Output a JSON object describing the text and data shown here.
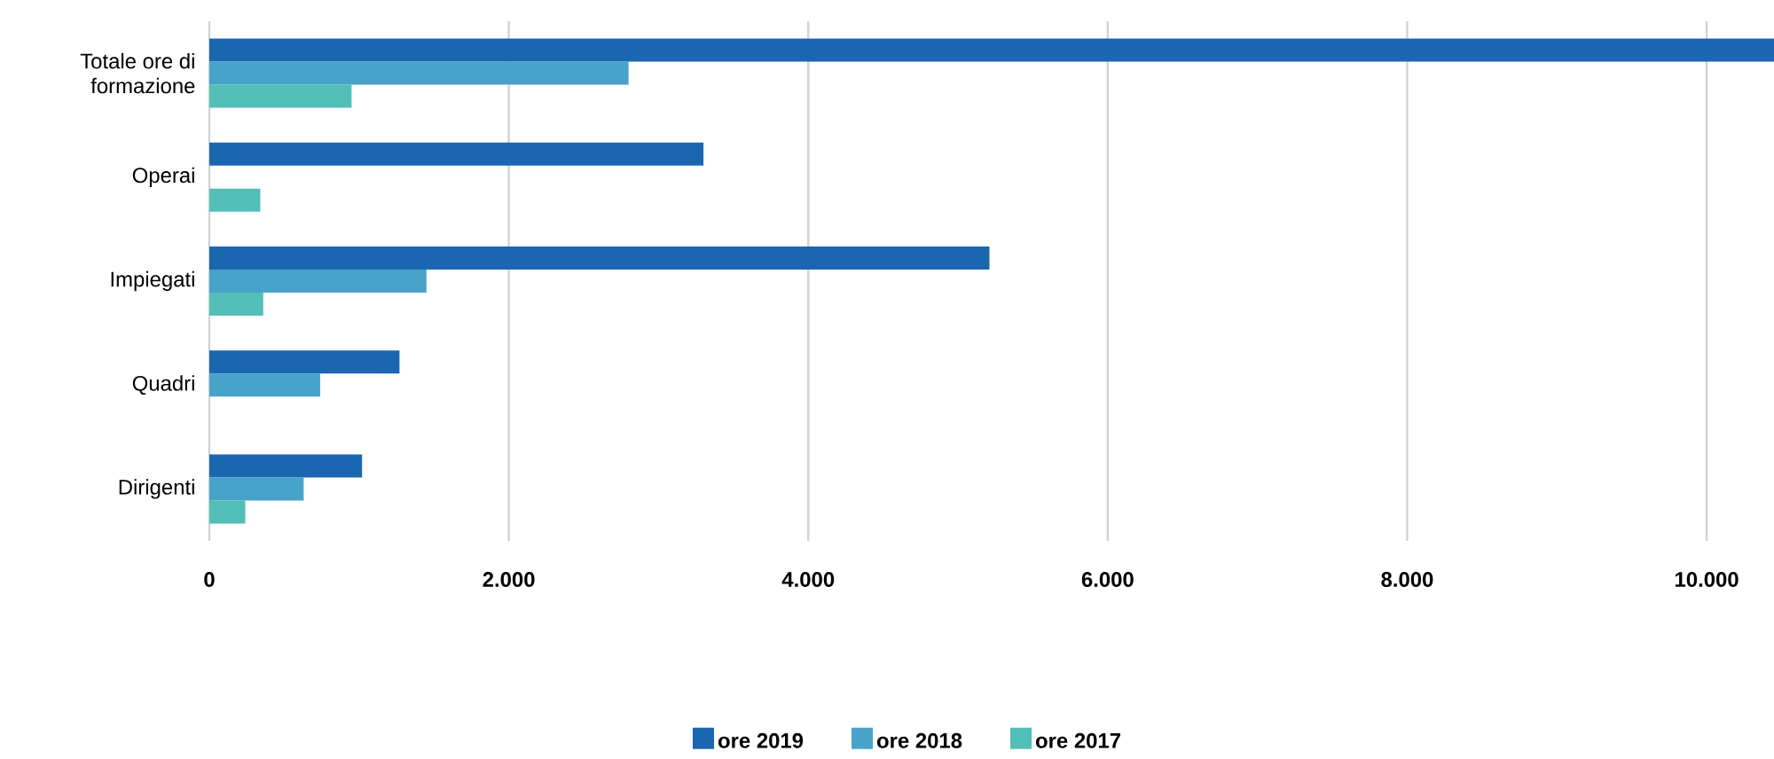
{
  "chart_data": {
    "type": "bar",
    "orientation": "horizontal",
    "categories": [
      "Totale ore di formazione",
      "Operai",
      "Impiegati",
      "Quadri",
      "Dirigenti"
    ],
    "series": [
      {
        "name": "ore 2019",
        "color": "#1b66b0",
        "values": [
          10450,
          3300,
          5210,
          1270,
          1020
        ]
      },
      {
        "name": "ore 2018",
        "color": "#47a3c9",
        "values": [
          2800,
          null,
          1450,
          740,
          630
        ]
      },
      {
        "name": "ore 2017",
        "color": "#52beb8",
        "values": [
          950,
          340,
          360,
          null,
          240
        ]
      }
    ],
    "xlim": [
      0,
      10450
    ],
    "xticks": [
      0,
      {
        "value": 2000,
        "label": "2.000"
      },
      {
        "value": 4000,
        "label": "4.000"
      },
      {
        "value": 6000,
        "label": "6.000"
      },
      {
        "value": 8000,
        "label": "8.000"
      },
      {
        "value": 10000,
        "label": "10.000"
      }
    ],
    "grid": "x",
    "legend": "bottom"
  }
}
